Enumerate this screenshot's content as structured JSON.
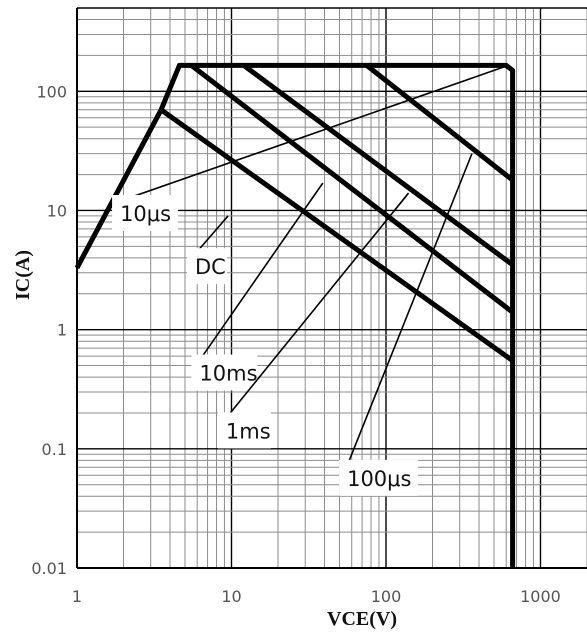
{
  "chart_data": {
    "type": "line",
    "title": "",
    "xlabel": "VCE(V)",
    "ylabel": "IC(A)",
    "xscale": "log",
    "yscale": "log",
    "xlim": [
      1,
      2000
    ],
    "ylim": [
      0.01,
      500
    ],
    "grid": true,
    "x_ticks": [
      {
        "value": 1,
        "label": "1"
      },
      {
        "value": 10,
        "label": "10"
      },
      {
        "value": 100,
        "label": "100"
      },
      {
        "value": 1000,
        "label": "1000"
      }
    ],
    "y_ticks": [
      {
        "value": 0.01,
        "label": "0.01"
      },
      {
        "value": 0.1,
        "label": "0.1"
      },
      {
        "value": 1,
        "label": "1"
      },
      {
        "value": 10,
        "label": "10"
      },
      {
        "value": 100,
        "label": "100"
      }
    ],
    "series": [
      {
        "points": [
          [
            1,
            3.3
          ],
          [
            3.5,
            70
          ],
          [
            4.6,
            165
          ],
          [
            600,
            165
          ],
          [
            660,
            150
          ],
          [
            660,
            0.01
          ]
        ]
      },
      {
        "points": [
          [
            3.5,
            70
          ],
          [
            660,
            0.55
          ]
        ]
      },
      {
        "points": [
          [
            5.5,
            165
          ],
          [
            660,
            1.4
          ]
        ]
      },
      {
        "points": [
          [
            12,
            165
          ],
          [
            660,
            3.5
          ]
        ]
      },
      {
        "points": [
          [
            75,
            165
          ],
          [
            660,
            18
          ]
        ]
      }
    ],
    "annotations": [
      {
        "text": "10μs",
        "point_x": 620,
        "point_y": 165,
        "label_x": 1.9,
        "label_y": 12
      },
      {
        "text": "DC",
        "point_x": 9.5,
        "point_y": 9,
        "label_x": 5.8,
        "label_y": 4.3
      },
      {
        "text": "10ms",
        "point_x": 39,
        "point_y": 17,
        "label_x": 6.2,
        "label_y": 0.55
      },
      {
        "text": "1ms",
        "point_x": 140,
        "point_y": 14,
        "label_x": 9.2,
        "label_y": 0.18
      },
      {
        "text": "100μs",
        "point_x": 360,
        "point_y": 30,
        "label_x": 56,
        "label_y": 0.072
      }
    ]
  }
}
